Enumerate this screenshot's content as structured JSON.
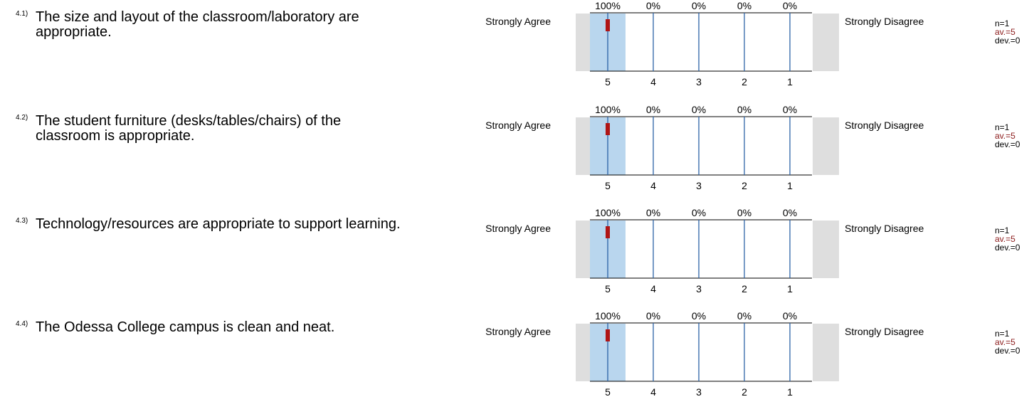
{
  "left_label": "Strongly Agree",
  "right_label": "Strongly Disagree",
  "scale_values": [
    "5",
    "4",
    "3",
    "2",
    "1"
  ],
  "colors": {
    "highlight": "#b9d6ee",
    "divider": "#2b62a6",
    "marker": "#b01515",
    "side_box": "#dedede",
    "average_text": "#8b1a1a"
  },
  "chart_data": [
    {
      "type": "bar",
      "number": "4.1)",
      "question": "The size and layout of the classroom/laboratory are appropriate.",
      "categories": [
        "5",
        "4",
        "3",
        "2",
        "1"
      ],
      "percent_labels": [
        "100%",
        "0%",
        "0%",
        "0%",
        "0%"
      ],
      "values": [
        100,
        0,
        0,
        0,
        0
      ],
      "average": 5,
      "n": "n=1",
      "av": "av.=5",
      "dev": "dev.=0"
    },
    {
      "type": "bar",
      "number": "4.2)",
      "question": "The student furniture (desks/tables/chairs) of the classroom is appropriate.",
      "categories": [
        "5",
        "4",
        "3",
        "2",
        "1"
      ],
      "percent_labels": [
        "100%",
        "0%",
        "0%",
        "0%",
        "0%"
      ],
      "values": [
        100,
        0,
        0,
        0,
        0
      ],
      "average": 5,
      "n": "n=1",
      "av": "av.=5",
      "dev": "dev.=0"
    },
    {
      "type": "bar",
      "number": "4.3)",
      "question": "Technology/resources are appropriate to support learning.",
      "categories": [
        "5",
        "4",
        "3",
        "2",
        "1"
      ],
      "percent_labels": [
        "100%",
        "0%",
        "0%",
        "0%",
        "0%"
      ],
      "values": [
        100,
        0,
        0,
        0,
        0
      ],
      "average": 5,
      "n": "n=1",
      "av": "av.=5",
      "dev": "dev.=0"
    },
    {
      "type": "bar",
      "number": "4.4)",
      "question": "The Odessa College campus is clean and neat.",
      "categories": [
        "5",
        "4",
        "3",
        "2",
        "1"
      ],
      "percent_labels": [
        "100%",
        "0%",
        "0%",
        "0%",
        "0%"
      ],
      "values": [
        100,
        0,
        0,
        0,
        0
      ],
      "average": 5,
      "n": "n=1",
      "av": "av.=5",
      "dev": "dev.=0"
    }
  ]
}
